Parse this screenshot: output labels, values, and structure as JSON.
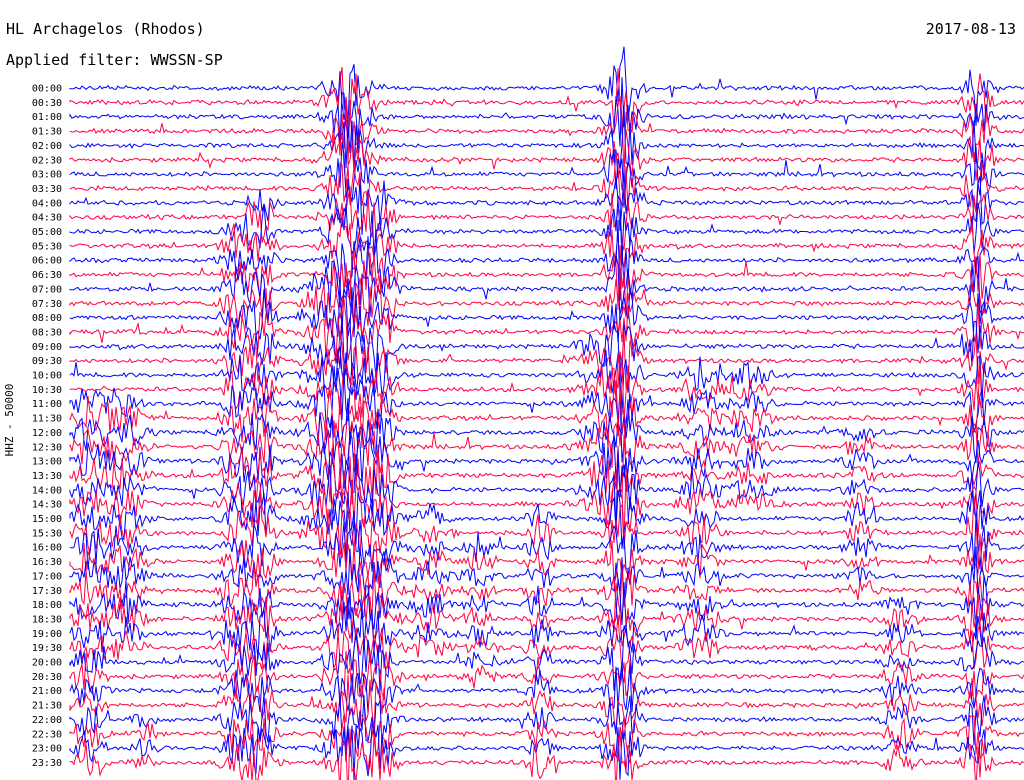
{
  "header": {
    "station": "HL Archagelos (Rhodos)",
    "date": "2017-08-13",
    "filter": "Applied filter: WWSSN-SP"
  },
  "chart_data": {
    "type": "line",
    "subtype": "helicorder",
    "title": "HL Archagelos (Rhodos)",
    "date": "2017-08-13",
    "filter": "WWSSN-SP",
    "ylabel": "HHZ - 50000",
    "row_labels": [
      "00:00",
      "00:30",
      "01:00",
      "01:30",
      "02:00",
      "02:30",
      "03:00",
      "03:30",
      "04:00",
      "04:30",
      "05:00",
      "05:30",
      "06:00",
      "06:30",
      "07:00",
      "07:30",
      "08:00",
      "08:30",
      "09:00",
      "09:30",
      "10:00",
      "10:30",
      "11:00",
      "11:30",
      "12:00",
      "12:30",
      "13:00",
      "13:30",
      "14:00",
      "14:30",
      "15:00",
      "15:30",
      "16:00",
      "16:30",
      "17:00",
      "17:30",
      "18:00",
      "18:30",
      "19:00",
      "19:30",
      "20:00",
      "20:30",
      "21:00",
      "21:30",
      "22:00",
      "22:30",
      "23:00",
      "23:30"
    ],
    "trace_colors": [
      "#0000ff",
      "#ff0040"
    ],
    "rows_per_color": 1,
    "grid": false
  }
}
